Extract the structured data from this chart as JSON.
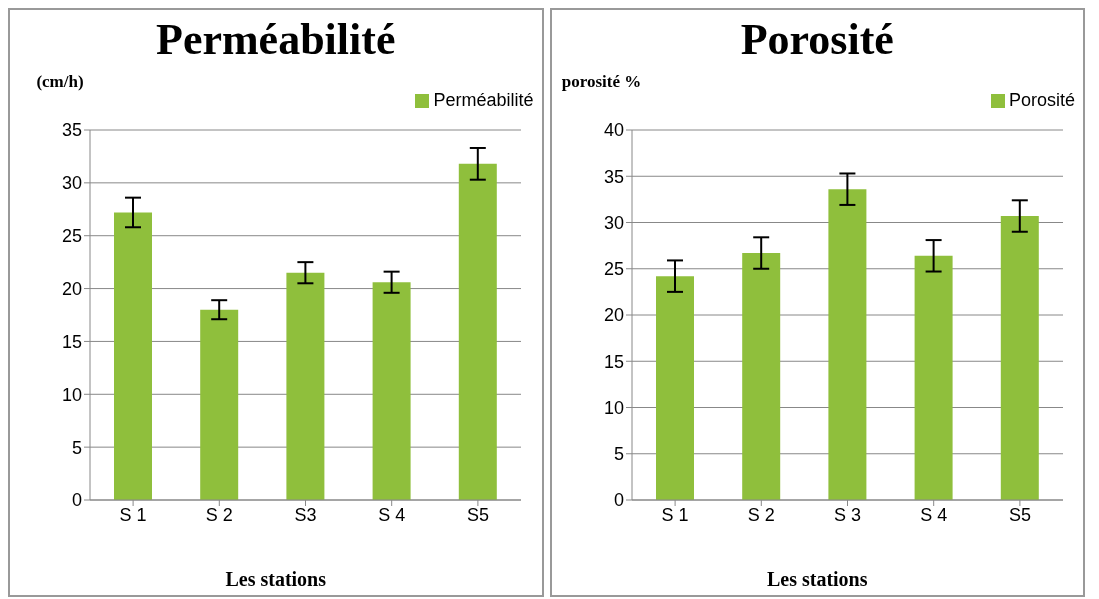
{
  "chart_data": [
    {
      "type": "bar",
      "title": "Perméabilité",
      "xlabel": "Les stations",
      "ylabel": "(cm/h)",
      "categories": [
        "S 1",
        "S 2",
        "S3",
        "S 4",
        "S5"
      ],
      "series": [
        {
          "name": "Perméabilité",
          "color": "#8fbf3c",
          "values": [
            27.2,
            18.0,
            21.5,
            20.6,
            31.8
          ],
          "errors": [
            1.4,
            0.9,
            1.0,
            1.0,
            1.5
          ]
        }
      ],
      "ylim": [
        0,
        35
      ],
      "yticks": [
        0,
        5,
        10,
        15,
        20,
        25,
        30,
        35
      ],
      "grid": "y",
      "legend": "top right"
    },
    {
      "type": "bar",
      "title": "Porosité",
      "xlabel": "Les stations",
      "ylabel": "porosité %",
      "categories": [
        "S 1",
        "S 2",
        "S 3",
        "S 4",
        "S5"
      ],
      "series": [
        {
          "name": "Porosité",
          "color": "#8fbf3c",
          "values": [
            24.2,
            26.7,
            33.6,
            26.4,
            30.7
          ],
          "errors": [
            1.7,
            1.7,
            1.7,
            1.7,
            1.7
          ]
        }
      ],
      "ylim": [
        0,
        40
      ],
      "yticks": [
        0,
        5,
        10,
        15,
        20,
        25,
        30,
        35,
        40
      ],
      "grid": "y",
      "legend": "top right"
    }
  ]
}
